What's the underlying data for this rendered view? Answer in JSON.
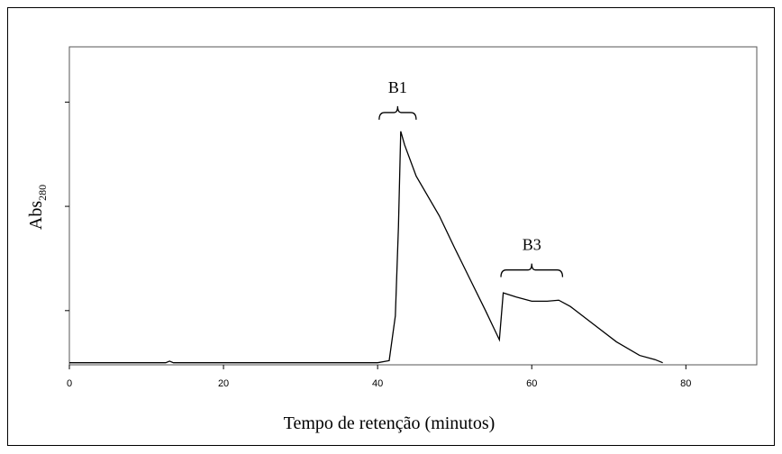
{
  "chart_data": {
    "type": "line",
    "xlabel": "Tempo de retenção (minutos)",
    "ylabel": {
      "text": "Abs",
      "subscript": "280"
    },
    "x": [
      0,
      12.5,
      13,
      13.5,
      40,
      41.5,
      42.3,
      42.7,
      43,
      43.5,
      45,
      48,
      50,
      52,
      54,
      55.8,
      56.3,
      58,
      60,
      62,
      63.5,
      65,
      68,
      71,
      74,
      76,
      77
    ],
    "values": [
      0,
      0,
      0.015,
      0,
      0,
      0.02,
      0.45,
      1.3,
      2.22,
      2.09,
      1.79,
      1.41,
      1.1,
      0.8,
      0.5,
      0.22,
      0.67,
      0.63,
      0.59,
      0.59,
      0.6,
      0.54,
      0.37,
      0.2,
      0.07,
      0.03,
      0
    ],
    "color": "#000000",
    "xlim": [
      0,
      89.2
    ],
    "xticks": [
      0,
      20,
      40,
      60,
      80
    ],
    "ylim": [
      -0.02,
      3.03
    ],
    "yticks": [
      0.5,
      1.5,
      2.5
    ],
    "annotations": [
      {
        "text": "B1",
        "x_start": 40.2,
        "x_end": 45,
        "y": 2.4
      },
      {
        "text": "B3",
        "x_start": 56,
        "x_end": 64,
        "y": 0.89
      }
    ]
  }
}
